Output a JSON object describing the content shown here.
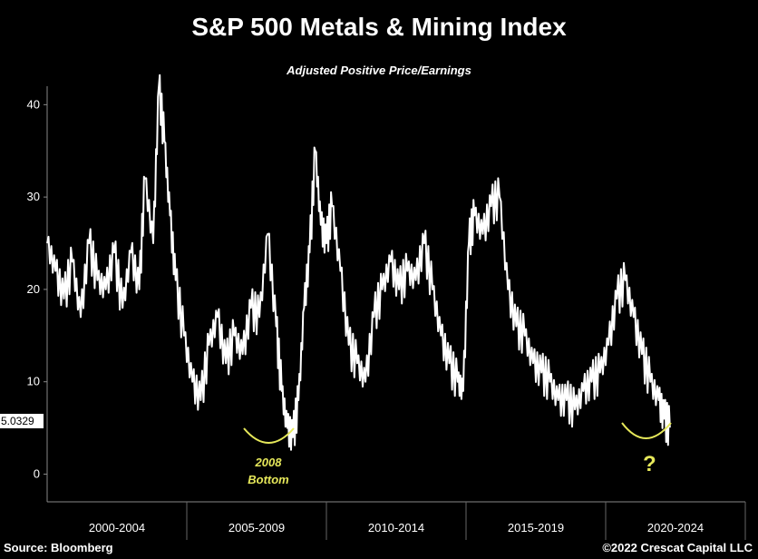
{
  "header": {
    "title": "S&P 500 Metals & Mining Index",
    "subtitle": "Adjusted Positive Price/Earnings"
  },
  "footer": {
    "source": "Source: Bloomberg",
    "copyright": "©2022 Crescat Capital LLC"
  },
  "annotations": {
    "bottom_2008_line1": "2008",
    "bottom_2008_line2": "Bottom",
    "question": "?",
    "last_value_label": "5.0329"
  },
  "colors": {
    "background": "#000000",
    "line": "#ffffff",
    "annotation": "#e6e85a"
  },
  "chart_data": {
    "type": "line",
    "title": "S&P 500 Metals & Mining Index",
    "subtitle": "Adjusted Positive Price/Earnings",
    "x_groups": [
      "2000-2004",
      "2005-2009",
      "2010-2014",
      "2015-2019",
      "2020-2024"
    ],
    "xlim": [
      2000,
      2025
    ],
    "ylim": [
      -3,
      42
    ],
    "y_ticks": [
      0,
      10,
      20,
      30,
      40
    ],
    "grid": false,
    "last_value": 5.0329,
    "series": [
      {
        "x": [
          2000.0,
          2000.3,
          2000.6,
          2000.9,
          2001.2,
          2001.5,
          2001.8,
          2002.1,
          2002.4,
          2002.7,
          2003.0,
          2003.3,
          2003.5,
          2003.8,
          2004.0,
          2004.2,
          2004.4,
          2004.6,
          2004.9,
          2005.2,
          2005.5,
          2005.8,
          2006.1,
          2006.4,
          2006.7,
          2007.0,
          2007.3,
          2007.6,
          2007.9,
          2008.2,
          2008.4,
          2008.6,
          2008.8,
          2009.0,
          2009.2,
          2009.4,
          2009.6,
          2009.8,
          2010.0,
          2010.2,
          2010.5,
          2010.8,
          2011.1,
          2011.4,
          2011.7,
          2012.0,
          2012.3,
          2012.6,
          2012.9,
          2013.2,
          2013.5,
          2013.8,
          2014.1,
          2014.4,
          2014.7,
          2014.9,
          2015.1,
          2015.3,
          2015.6,
          2015.9,
          2016.2,
          2016.5,
          2016.8,
          2017.1,
          2017.4,
          2017.7,
          2018.0,
          2018.3,
          2018.6,
          2018.9,
          2019.2,
          2019.5,
          2019.8,
          2020.1,
          2020.4,
          2020.7,
          2021.0,
          2021.3,
          2021.6,
          2021.9,
          2022.1,
          2022.3
        ],
        "y": [
          25,
          22,
          19,
          23,
          17,
          25,
          21,
          20,
          24,
          18,
          24,
          20,
          32,
          25,
          42,
          36,
          28,
          21,
          15,
          10,
          8,
          14,
          17,
          12,
          15,
          13,
          18,
          17,
          26,
          16,
          9,
          5,
          4,
          8,
          18,
          24,
          35,
          27,
          25,
          29,
          22,
          14,
          12,
          10,
          17,
          20,
          23,
          20,
          22,
          21,
          25,
          20,
          15,
          12,
          10,
          9,
          25,
          28,
          26,
          29,
          30,
          20,
          16,
          15,
          12,
          11,
          10,
          8,
          8,
          7,
          9,
          10,
          11,
          14,
          19,
          21,
          17,
          13,
          10,
          8,
          6,
          5.0329
        ]
      }
    ]
  }
}
